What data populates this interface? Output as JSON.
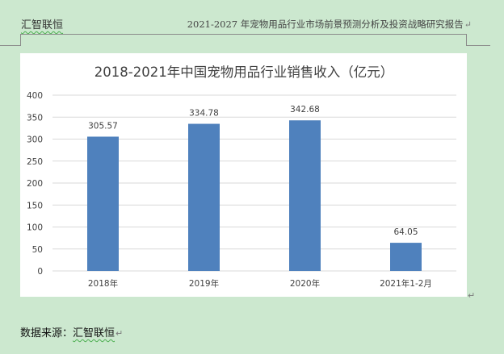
{
  "header": {
    "brand": "汇智联恒",
    "report_title": "2021-2027 年宠物用品行业市场前景预测分析及投资战略研究报告",
    "para_mark": "↵"
  },
  "footer": {
    "source_label": "数据来源：",
    "source_value": "汇智联恒",
    "para_mark": "↵"
  },
  "chart_data": {
    "type": "bar",
    "title": "2018-2021年中国宠物用品行业销售收入（亿元）",
    "categories": [
      "2018年",
      "2019年",
      "2020年",
      "2021年1-2月"
    ],
    "values": [
      305.57,
      334.78,
      342.68,
      64.05
    ],
    "value_labels": [
      "305.57",
      "334.78",
      "342.68",
      "64.05"
    ],
    "ylim": [
      0,
      400
    ],
    "yticks": [
      "0",
      "50",
      "100",
      "150",
      "200",
      "250",
      "300",
      "350",
      "400"
    ],
    "bar_color": "#4f81bd",
    "grid": true,
    "legend": "none"
  }
}
